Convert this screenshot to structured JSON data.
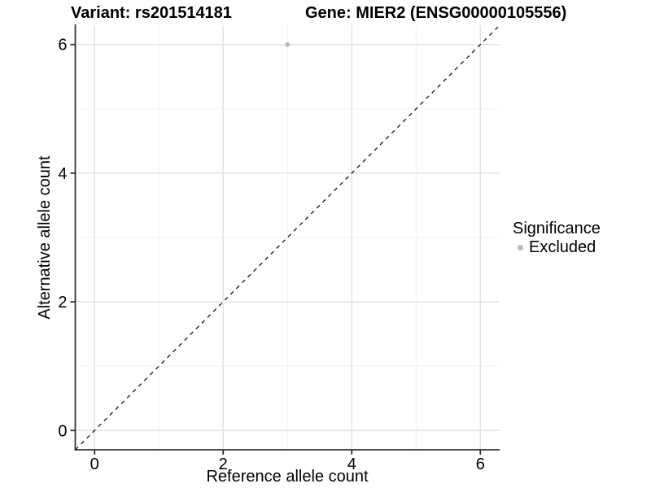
{
  "header": {
    "variant_title": "Variant: rs201514181",
    "gene_title": "Gene: MIER2 (ENSG00000105556)"
  },
  "legend": {
    "title": "Significance",
    "items": [
      {
        "label": "Excluded",
        "color": "#bababa"
      }
    ]
  },
  "chart_data": {
    "type": "scatter",
    "title": "Variant: rs201514181   Gene: MIER2 (ENSG00000105556)",
    "xlabel": "Reference allele count",
    "ylabel": "Alternative allele count",
    "xlim": [
      -0.3,
      6.3
    ],
    "ylim": [
      -0.3,
      6.3
    ],
    "x_ticks": [
      0,
      2,
      4,
      6
    ],
    "y_ticks": [
      0,
      2,
      4,
      6
    ],
    "x_minor_ticks": [
      1,
      3,
      5
    ],
    "y_minor_ticks": [
      1,
      3,
      5
    ],
    "grid": true,
    "legend_position": "right",
    "series": [
      {
        "name": "Excluded",
        "color": "#bababa",
        "points": [
          {
            "x": 3,
            "y": 6
          }
        ]
      }
    ],
    "reference_line": {
      "slope": 1,
      "intercept": 0,
      "style": "dashed",
      "color": "#111111"
    },
    "colors": {
      "axis_line": "#333333",
      "grid_major": "#e3e3e3",
      "grid_minor": "#f0f0f0",
      "point_excluded": "#bababa"
    }
  }
}
